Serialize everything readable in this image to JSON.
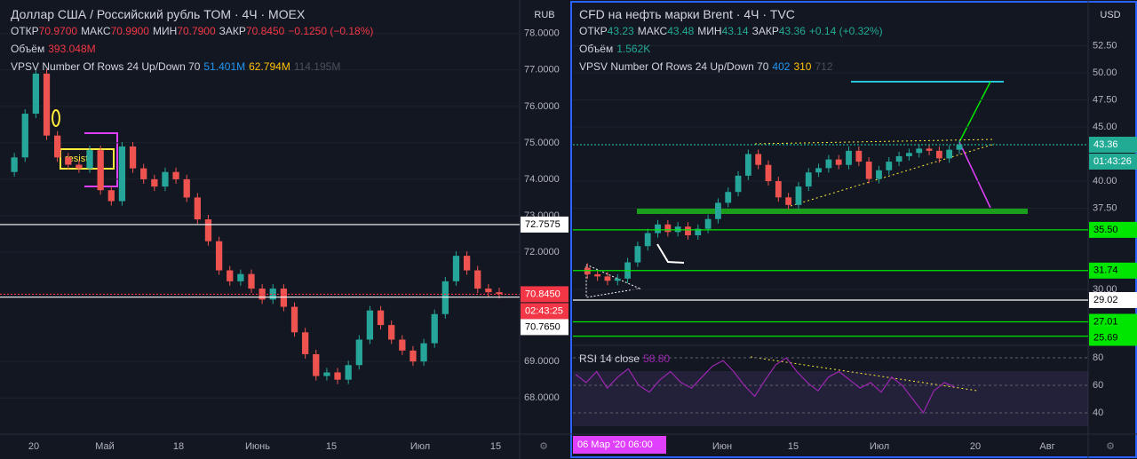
{
  "left": {
    "title": "Доллар США / Российский рубль TOM · 4Ч · MOEX",
    "ohlc": [
      {
        "label": "ОТКР",
        "value": "70.9700"
      },
      {
        "label": "МАКС",
        "value": "70.9900"
      },
      {
        "label": "МИН",
        "value": "70.7900"
      },
      {
        "label": "ЗАКР",
        "value": "70.8450"
      }
    ],
    "change": "−0.1250 (−0.18%)",
    "volume": {
      "label": "Объём",
      "value": "393.048M"
    },
    "vpsv": {
      "label": "VPSV Number Of Rows 24 Up/Down 70",
      "up": "51.401M",
      "down": "62.794M",
      "total": "114.195M"
    },
    "currency": "RUB",
    "annotation": "resist",
    "ylim": [
      67.03,
      78.92
    ],
    "yticks": [
      {
        "value": 78,
        "label": "78.0000"
      },
      {
        "value": 77,
        "label": "77.0000"
      },
      {
        "value": 76,
        "label": "76.0000"
      },
      {
        "value": 75,
        "label": "75.0000"
      },
      {
        "value": 74,
        "label": "74.0000"
      },
      {
        "value": 73,
        "label": "73.0000"
      },
      {
        "value": 72,
        "label": "72.0000"
      },
      {
        "value": 69,
        "label": "69.0000"
      },
      {
        "value": 68,
        "label": "68.0000"
      }
    ],
    "close": [
      74.2,
      74.6,
      75.8,
      76.9,
      75.2,
      74.6,
      74.4,
      74.3,
      74.8,
      73.7,
      73.4,
      74.9,
      74.3,
      74.0,
      73.8,
      74.2,
      74.0,
      73.5,
      72.9,
      72.3,
      71.5,
      71.2,
      71.4,
      71.0,
      70.7,
      71.0,
      70.5,
      69.8,
      69.2,
      68.6,
      68.7,
      68.5,
      68.9,
      69.6,
      70.4,
      70.0,
      69.6,
      69.3,
      69.0,
      69.5,
      70.3,
      71.2,
      71.9,
      71.5,
      71.0,
      70.9,
      70.85
    ],
    "price_tags": [
      {
        "value": 72.7575,
        "label": "72.7575",
        "style": "white"
      },
      {
        "value": 70.845,
        "label": "70.8450",
        "style": "red"
      },
      {
        "label": "02:43:25",
        "style": "red"
      },
      {
        "value": 70.765,
        "label": "70.7650",
        "style": "white"
      }
    ],
    "time_labels": [
      "20",
      "Май",
      "18",
      "Июнь",
      "15",
      "Июл",
      "15"
    ]
  },
  "right": {
    "title": "CFD на нефть марки Brent · 4Ч · TVC",
    "ohlc": [
      {
        "label": "ОТКР",
        "value": "43.23"
      },
      {
        "label": "МАКС",
        "value": "43.48"
      },
      {
        "label": "МИН",
        "value": "43.14"
      },
      {
        "label": "ЗАКР",
        "value": "43.36"
      }
    ],
    "change": "+0.14 (+0.32%)",
    "volume": {
      "label": "Объём",
      "value": "1.562K"
    },
    "vpsv": {
      "label": "VPSV Number Of Rows 24 Up/Down 70",
      "up": "402",
      "down": "310",
      "total": "712"
    },
    "currency": "USD",
    "ylim": [
      24.92,
      56.72
    ],
    "yticks": [
      {
        "value": 52.5,
        "label": "52.50"
      },
      {
        "value": 50,
        "label": "50.00"
      },
      {
        "value": 47.5,
        "label": "47.50"
      },
      {
        "value": 45,
        "label": "45.00"
      },
      {
        "value": 40,
        "label": "40.00"
      },
      {
        "value": 37.5,
        "label": "37.50"
      },
      {
        "value": 30,
        "label": "30.00"
      }
    ],
    "close": [
      32.0,
      31.4,
      31.2,
      30.8,
      31.0,
      32.5,
      34.0,
      35.2,
      36.0,
      35.3,
      35.8,
      35.0,
      35.6,
      36.5,
      38.0,
      39.0,
      40.5,
      42.5,
      41.5,
      40.0,
      38.5,
      37.8,
      39.5,
      40.8,
      41.2,
      42.0,
      41.5,
      42.8,
      41.8,
      40.2,
      41.0,
      41.8,
      42.3,
      42.6,
      43.0,
      42.8,
      42.1,
      42.9,
      43.36
    ],
    "price_tags": [
      {
        "value": 43.36,
        "label": "43.36",
        "style": "teal"
      },
      {
        "label": "01:43:26",
        "style": "teal"
      },
      {
        "value": 35.5,
        "label": "35.50",
        "style": "green"
      },
      {
        "value": 31.74,
        "label": "31.74",
        "style": "green"
      },
      {
        "value": 29.02,
        "label": "29.02",
        "style": "white"
      },
      {
        "value": 27.01,
        "label": "27.01",
        "style": "green"
      },
      {
        "value": 25.69,
        "label": "25.69",
        "style": "green"
      }
    ],
    "rsi": {
      "label": "RSI 14 close",
      "value": "58.80",
      "ylim": [
        27.1,
        88.4
      ],
      "yticks": [
        80,
        60,
        40
      ],
      "values": [
        68,
        62,
        70,
        58,
        66,
        72,
        60,
        55,
        64,
        70,
        62,
        58,
        66,
        74,
        78,
        70,
        60,
        52,
        64,
        75,
        80,
        70,
        62,
        56,
        66,
        70,
        64,
        58,
        62,
        55,
        66,
        60,
        50,
        40,
        56,
        62,
        58.8
      ]
    },
    "cursor_label": "06 Мар '20   06:00",
    "time_labels": [
      "Июн",
      "15",
      "Июл",
      "20",
      "Авг"
    ]
  }
}
